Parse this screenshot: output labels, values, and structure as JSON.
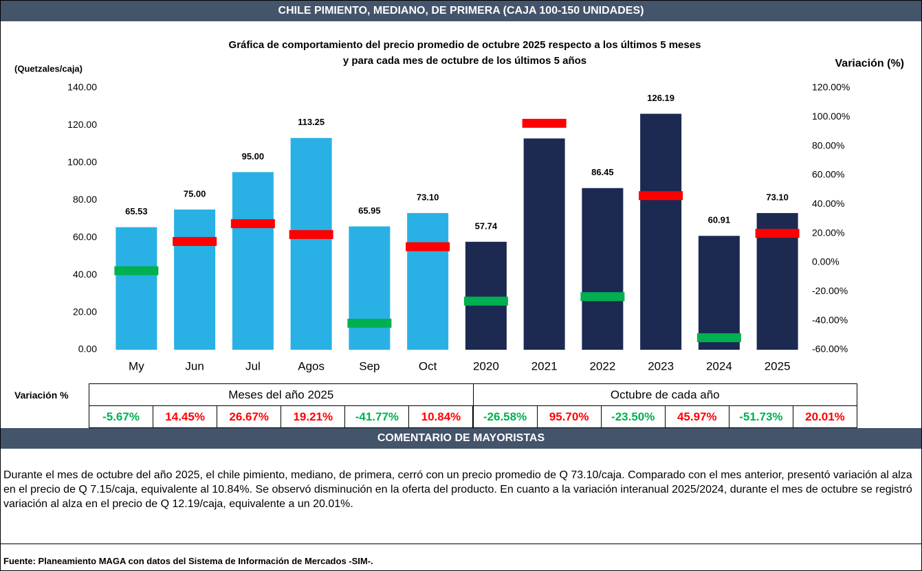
{
  "header": "CHILE PIMIENTO, MEDIANO, DE PRIMERA (CAJA 100-150 UNIDADES)",
  "chart_data": {
    "type": "bar",
    "title": "Gráfica de comportamiento del precio promedio de octubre 2025 respecto a los últimos 5 meses",
    "subtitle": "y para cada mes de octubre de los últimos 5 años",
    "ylabel": "(Quetzales/caja)",
    "y2label": "Variación (%)",
    "ylim": [
      0,
      140
    ],
    "yticks": [
      {
        "value": 0,
        "label": "0.00"
      },
      {
        "value": 20,
        "label": "20.00"
      },
      {
        "value": 40,
        "label": "40.00"
      },
      {
        "value": 60,
        "label": "60.00"
      },
      {
        "value": 80,
        "label": "80.00"
      },
      {
        "value": 100,
        "label": "100.00"
      },
      {
        "value": 120,
        "label": "120.00"
      },
      {
        "value": 140,
        "label": "140.00"
      }
    ],
    "y2lim": [
      -60,
      120
    ],
    "y2ticks": [
      {
        "value": -60,
        "label": "-60.00%"
      },
      {
        "value": -40,
        "label": "-40.00%"
      },
      {
        "value": -20,
        "label": "-20.00%"
      },
      {
        "value": 0,
        "label": "0.00%"
      },
      {
        "value": 20,
        "label": "20.00%"
      },
      {
        "value": 40,
        "label": "40.00%"
      },
      {
        "value": 60,
        "label": "60.00%"
      },
      {
        "value": 80,
        "label": "80.00%"
      },
      {
        "value": 100,
        "label": "100.00%"
      },
      {
        "value": 120,
        "label": "120.00%"
      }
    ],
    "row_label": "Variación %",
    "up_color": "#ff0000",
    "down_color": "#00b050",
    "groups": [
      {
        "label": "Meses del año  2025",
        "color": "#29b1e5",
        "categories": [
          "My",
          "Jun",
          "Jul",
          "Agos",
          "Sep",
          "Oct"
        ],
        "values": [
          65.53,
          75,
          95,
          113.25,
          65.95,
          73.1
        ],
        "value_labels": [
          "65.53",
          "75.00",
          "95.00",
          "113.25",
          "65.95",
          "73.10"
        ],
        "variation": [
          -5.67,
          14.45,
          26.67,
          19.21,
          -41.77,
          10.84
        ],
        "variation_labels": [
          "-5.67%",
          "14.45%",
          "26.67%",
          "19.21%",
          "-41.77%",
          "10.84%"
        ]
      },
      {
        "label": "Octubre de cada año",
        "color": "#1c2951",
        "categories": [
          "2020",
          "2021",
          "2022",
          "2023",
          "2024",
          "2025"
        ],
        "values": [
          57.74,
          113,
          86.45,
          126.19,
          60.91,
          73.1
        ],
        "value_labels": [
          "57.74",
          "113.00",
          "86.45",
          "126.19",
          "60.91",
          "73.10"
        ],
        "variation": [
          -26.58,
          95.7,
          -23.5,
          45.97,
          -51.73,
          20.01
        ],
        "variation_labels": [
          "-26.58%",
          "95.70%",
          "-23.50%",
          "45.97%",
          "-51.73%",
          "20.01%"
        ]
      }
    ]
  },
  "comment_title": "COMENTARIO DE MAYORISTAS",
  "comment": "Durante el mes de octubre del año 2025, el chile pimiento, mediano, de primera, cerró con un precio promedio de Q 73.10/caja. Comparado con el mes anterior, presentó variación al alza en el precio de Q 7.15/caja, equivalente al 10.84%. Se observó disminución en la oferta del producto. En cuanto a la variación interanual 2025/2024, durante el mes de octubre se registró variación al alza en el precio de Q 12.19/caja, equivalente a un 20.01%.",
  "source": "Fuente: Planeamiento MAGA con datos del  Sistema de Información de Mercados -SIM-."
}
